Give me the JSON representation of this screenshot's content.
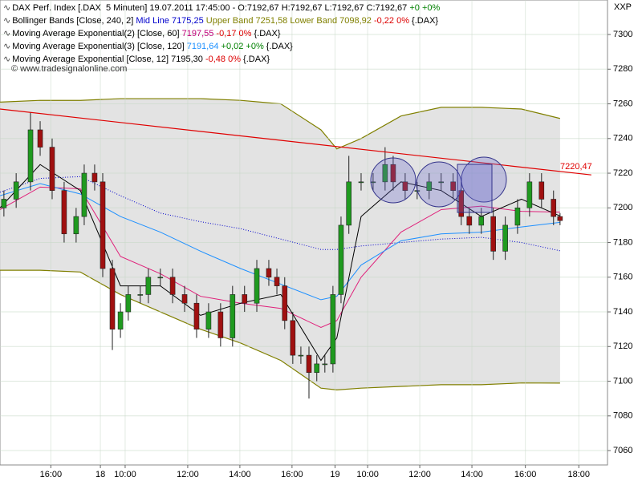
{
  "chart_data": {
    "type": "candlestick",
    "corner_label": "XXP",
    "watermark": "© www.tradesignalonline.com",
    "legend_lines": [
      {
        "parts": [
          {
            "text": "DAX Perf. Index [.DAX  5 Minuten] 19.07.2011 17:45:00 - O:7192,67 H:7192,67 L:7192,67 C:7192,67 ",
            "color": "#000000"
          },
          {
            "text": "+0 +0%",
            "color": "#008000"
          }
        ]
      },
      {
        "parts": [
          {
            "text": "Bollinger Bands [Close, 240, 2] ",
            "color": "#000000"
          },
          {
            "text": "Mid Line 7175,25",
            "color": "#0000cc"
          },
          {
            "text": " Upper Band 7251,58",
            "color": "#808000"
          },
          {
            "text": " Lower Band 7098,92",
            "color": "#808000"
          },
          {
            "text": " -0,22 0%",
            "color": "#dd0000"
          },
          {
            "text": " {.DAX}",
            "color": "#000000"
          }
        ]
      },
      {
        "parts": [
          {
            "text": "Moving Average Exponential(2) [Close, 60] ",
            "color": "#000000"
          },
          {
            "text": "7197,55",
            "color": "#c0007a"
          },
          {
            "text": " -0,17 0%",
            "color": "#dd0000"
          },
          {
            "text": " {.DAX}",
            "color": "#000000"
          }
        ]
      },
      {
        "parts": [
          {
            "text": "Moving Average Exponential(3) [Close, 120] ",
            "color": "#000000"
          },
          {
            "text": "7191,64",
            "color": "#1e90ff"
          },
          {
            "text": " +0,02 +0%",
            "color": "#008000"
          },
          {
            "text": " {.DAX}",
            "color": "#000000"
          }
        ]
      },
      {
        "parts": [
          {
            "text": "Moving Average Exponential [Close, 12] 7195,30 ",
            "color": "#000000"
          },
          {
            "text": "-0,48 0%",
            "color": "#dd0000"
          },
          {
            "text": " {.DAX}",
            "color": "#000000"
          }
        ]
      }
    ],
    "xlim": [
      0,
      23.3
    ],
    "xticks": [
      {
        "value": 1.95,
        "label": "16:00"
      },
      {
        "value": 3.85,
        "label": "18"
      },
      {
        "value": 4.8,
        "label": "10:00"
      },
      {
        "value": 7.2,
        "label": "12:00"
      },
      {
        "value": 9.2,
        "label": "14:00"
      },
      {
        "value": 11.2,
        "label": "16:00"
      },
      {
        "value": 12.85,
        "label": "19"
      },
      {
        "value": 14.1,
        "label": "10:00"
      },
      {
        "value": 16.1,
        "label": "12:00"
      },
      {
        "value": 18.1,
        "label": "14:00"
      },
      {
        "value": 20.15,
        "label": "16:00"
      },
      {
        "value": 22.2,
        "label": "18:00"
      }
    ],
    "ylim": [
      7051.7,
      7319.9
    ],
    "yticks": [
      7060,
      7080,
      7100,
      7120,
      7140,
      7160,
      7180,
      7200,
      7220,
      7240,
      7260,
      7280,
      7300
    ],
    "grid": true,
    "up_color": "#1f9a1f",
    "down_color": "#a01010",
    "candles": {
      "x": [
        0.15,
        0.62,
        1.17,
        1.54,
        2,
        2.46,
        2.92,
        3.23,
        3.63,
        3.94,
        4.31,
        4.62,
        4.92,
        5.38,
        5.69,
        6.15,
        6.62,
        7.08,
        7.54,
        8,
        8.46,
        8.92,
        9.38,
        9.85,
        10.31,
        10.62,
        10.92,
        11.23,
        11.54,
        11.85,
        12.15,
        12.46,
        12.77,
        13.08,
        13.38,
        13.85,
        14.31,
        14.77,
        15.08,
        15.54,
        16,
        16.46,
        16.92,
        17.38,
        17.69,
        18,
        18.46,
        18.92,
        19.38,
        19.85,
        20.31,
        20.77,
        21.23,
        21.48
      ],
      "open": [
        7200,
        7205,
        7215,
        7245,
        7235,
        7210,
        7185,
        7195,
        7220,
        7215,
        7165,
        7130,
        7140,
        7150,
        7150,
        7160,
        7160,
        7150,
        7145,
        7130,
        7140,
        7125,
        7150,
        7145,
        7165,
        7160,
        7155,
        7135,
        7115,
        7115,
        7105,
        7110,
        7110,
        7150,
        7190,
        7215,
        7215,
        7215,
        7225,
        7215,
        7210,
        7210,
        7215,
        7215,
        7210,
        7195,
        7190,
        7195,
        7175,
        7190,
        7200,
        7215,
        7205,
        7195
      ],
      "high": [
        7210,
        7220,
        7255,
        7250,
        7240,
        7215,
        7200,
        7225,
        7225,
        7220,
        7170,
        7145,
        7155,
        7155,
        7165,
        7165,
        7165,
        7155,
        7150,
        7145,
        7145,
        7155,
        7155,
        7170,
        7170,
        7165,
        7160,
        7140,
        7120,
        7120,
        7115,
        7115,
        7155,
        7195,
        7230,
        7220,
        7220,
        7235,
        7230,
        7220,
        7215,
        7220,
        7220,
        7220,
        7215,
        7200,
        7200,
        7200,
        7195,
        7205,
        7220,
        7220,
        7210,
        7197
      ],
      "low": [
        7195,
        7200,
        7210,
        7230,
        7205,
        7180,
        7180,
        7190,
        7210,
        7160,
        7118,
        7125,
        7135,
        7145,
        7145,
        7155,
        7145,
        7140,
        7125,
        7125,
        7120,
        7120,
        7140,
        7140,
        7155,
        7150,
        7130,
        7110,
        7110,
        7090,
        7100,
        7105,
        7105,
        7145,
        7185,
        7210,
        7210,
        7210,
        7210,
        7205,
        7205,
        7205,
        7210,
        7205,
        7190,
        7185,
        7185,
        7170,
        7170,
        7185,
        7195,
        7200,
        7190,
        7190
      ],
      "close": [
        7205,
        7215,
        7245,
        7235,
        7210,
        7185,
        7195,
        7220,
        7215,
        7165,
        7130,
        7140,
        7150,
        7150,
        7160,
        7160,
        7150,
        7145,
        7130,
        7140,
        7125,
        7150,
        7145,
        7165,
        7160,
        7155,
        7135,
        7115,
        7115,
        7105,
        7110,
        7110,
        7150,
        7190,
        7215,
        7215,
        7215,
        7225,
        7215,
        7210,
        7210,
        7215,
        7215,
        7210,
        7195,
        7190,
        7195,
        7175,
        7190,
        7200,
        7215,
        7205,
        7195,
        7192.67
      ]
    },
    "indicator_x": [
      0,
      1.54,
      3.08,
      4.62,
      6.15,
      7.69,
      9.23,
      10.77,
      12.31,
      12.92,
      13.85,
      15.38,
      16.92,
      18.46,
      20,
      21.48
    ],
    "band": {
      "upper": [
        7261,
        7262,
        7262,
        7263,
        7263,
        7263,
        7262,
        7260,
        7245,
        7234,
        7240,
        7253,
        7258,
        7258,
        7257,
        7251.58
      ],
      "lower": [
        7164,
        7164,
        7163,
        7150,
        7140,
        7130,
        7122,
        7112,
        7096,
        7095,
        7096,
        7097,
        7098,
        7098,
        7099,
        7098.92
      ],
      "color": "#808000",
      "fill": "#dcdcdc"
    },
    "series": [
      {
        "color": "#0000cc",
        "dash": true,
        "values": [
          7209,
          7217,
          7218,
          7207,
          7197,
          7192,
          7188,
          7182,
          7176,
          7176,
          7178,
          7180,
          7182,
          7183,
          7180,
          7175.25
        ]
      },
      {
        "color": "#e0207a",
        "values": [
          7199,
          7212,
          7211,
          7172,
          7162,
          7149,
          7145,
          7142,
          7131,
          7135,
          7160,
          7186,
          7199,
          7201,
          7198,
          7197.55
        ]
      },
      {
        "color": "#1e90ff",
        "values": [
          7207,
          7214,
          7208,
          7195,
          7186,
          7175,
          7165,
          7156,
          7147,
          7149,
          7167,
          7181,
          7185,
          7186,
          7189,
          7191.64
        ]
      },
      {
        "color": "#000000",
        "values": [
          7200,
          7225,
          7210,
          7155,
          7155,
          7138,
          7145,
          7150,
          7112,
          7125,
          7195,
          7215,
          7210,
          7195,
          7205,
          7195.3
        ]
      }
    ],
    "trendline": {
      "x": [
        0,
        22.68
      ],
      "values": [
        7257,
        7219
      ],
      "color": "#e00000",
      "label": "7220,47"
    }
  }
}
